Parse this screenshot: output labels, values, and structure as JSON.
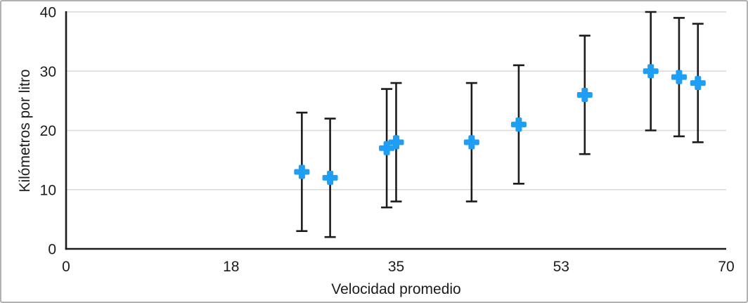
{
  "chart_data": {
    "type": "scatter",
    "title": "",
    "xlabel": "Velocidad promedio",
    "ylabel": "Kilómetros por litro",
    "xlim": [
      0,
      70
    ],
    "ylim": [
      0,
      40
    ],
    "x_ticks": [
      {
        "value": 0,
        "label": "0"
      },
      {
        "value": 17.5,
        "label": "18"
      },
      {
        "value": 35,
        "label": "35"
      },
      {
        "value": 52.5,
        "label": "53"
      },
      {
        "value": 70,
        "label": "70"
      }
    ],
    "y_ticks": [
      {
        "value": 0,
        "label": "0"
      },
      {
        "value": 10,
        "label": "10"
      },
      {
        "value": 20,
        "label": "20"
      },
      {
        "value": 30,
        "label": "30"
      },
      {
        "value": 40,
        "label": "40"
      }
    ],
    "grid": "horizontal",
    "legend": "none",
    "series": [
      {
        "name": "Kilómetros por litro",
        "marker": "plus",
        "marker_color": "#1e9ef4",
        "error_bar_color": "#1c1c1e",
        "error_y_plus": 10,
        "error_y_minus": 10,
        "points": [
          {
            "x": 25,
            "y": 13
          },
          {
            "x": 28,
            "y": 12
          },
          {
            "x": 34,
            "y": 17
          },
          {
            "x": 35,
            "y": 18
          },
          {
            "x": 43,
            "y": 18
          },
          {
            "x": 48,
            "y": 21
          },
          {
            "x": 55,
            "y": 26
          },
          {
            "x": 62,
            "y": 30
          },
          {
            "x": 65,
            "y": 29
          },
          {
            "x": 67,
            "y": 28
          }
        ]
      }
    ],
    "colors": {
      "axis": "#1c1c1e",
      "gridline": "#d9d9d9",
      "tick_text": "#1c1c1e",
      "background": "#ffffff",
      "border": "#b1b1b1"
    }
  }
}
